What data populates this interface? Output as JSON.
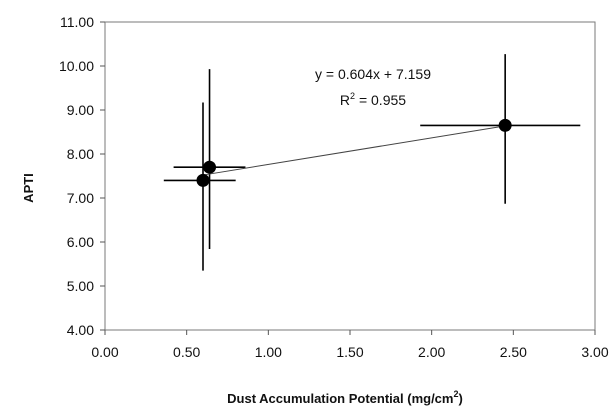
{
  "chart_data": {
    "type": "scatter",
    "title": "",
    "xlabel": "Dust Accumulation Potential (mg/cm2)",
    "xlabel_parts": {
      "main": "Dust Accumulation Potential (mg/cm",
      "sup": "2",
      "end": ")"
    },
    "ylabel": "APTI",
    "xlim": [
      0.0,
      3.0
    ],
    "ylim": [
      4.0,
      11.0
    ],
    "x_ticks": [
      "0.00",
      "0.50",
      "1.00",
      "1.50",
      "2.00",
      "2.50",
      "3.00"
    ],
    "y_ticks": [
      "4.00",
      "5.00",
      "6.00",
      "7.00",
      "8.00",
      "9.00",
      "10.00",
      "11.00"
    ],
    "points": [
      {
        "x": 0.6,
        "y": 7.4,
        "xerr_low": 0.24,
        "xerr_high": 0.2,
        "yerr_low": 2.05,
        "yerr_high": 1.77
      },
      {
        "x": 0.64,
        "y": 7.7,
        "xerr_low": 0.22,
        "xerr_high": 0.22,
        "yerr_low": 1.86,
        "yerr_high": 2.23
      },
      {
        "x": 2.45,
        "y": 8.65,
        "xerr_low": 0.52,
        "xerr_high": 0.46,
        "yerr_low": 1.78,
        "yerr_high": 1.62
      }
    ],
    "trendline": {
      "slope": 0.604,
      "intercept": 7.159,
      "x_range": [
        0.6,
        2.45
      ]
    },
    "annotations": {
      "equation": "y = 0.604x + 7.159",
      "r2_main": "R",
      "r2_sup": "2",
      "r2_end": " = 0.955"
    },
    "grid": false,
    "legend": "none",
    "colors": {
      "marker": "#000000",
      "axis": "#555555",
      "trend": "#444444"
    }
  }
}
